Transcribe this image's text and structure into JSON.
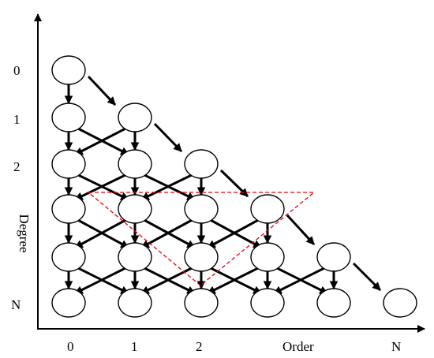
{
  "y_axis": {
    "title": "Degree",
    "ticks": [
      "0",
      "1",
      "2",
      "N"
    ]
  },
  "x_axis": {
    "title": "Order",
    "ticks": [
      "0",
      "1",
      "2",
      "N"
    ]
  },
  "colors": {
    "stroke": "#000000",
    "node_fill": "#ffffff",
    "highlight": "#e8000b"
  }
}
